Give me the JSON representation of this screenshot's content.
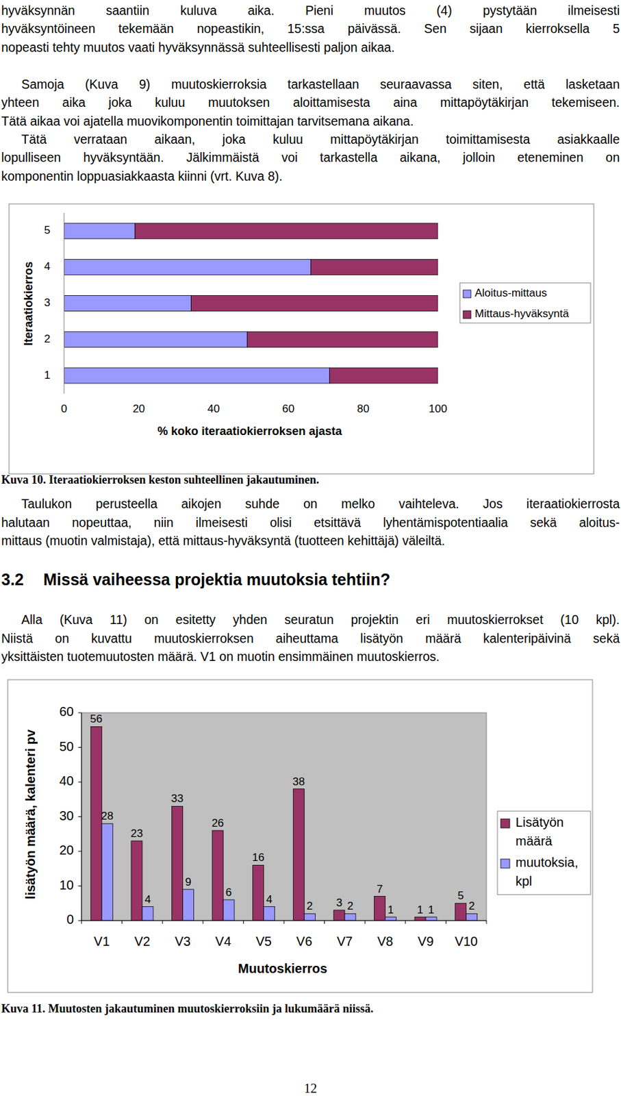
{
  "body_top": [
    [
      "hyväksynnän saantiin kuluva aika. Pieni muutos (4) pystytään ilmeisesti",
      "hyväksyntöineen tekemään nopeastikin, 15:ssa päivässä. Sen sijaan kierroksella 5",
      "nopeasti tehty muutos vaati hyväksynnässä suhteellisesti paljon aikaa."
    ],
    [
      "Samoja (Kuva 9) muutoskierroksia tarkastellaan seuraavassa siten, että lasketaan",
      "yhteen aika joka kuluu muutoksen aloittamisesta aina mittapöytäkirjan tekemiseen.",
      "Tätä aikaa voi ajatella muovikomponentin toimittajan tarvitsemana aikana."
    ],
    [
      "Tätä verrataan aikaan, joka kuluu mittapöytäkirjan toimittamisesta asiakkaalle",
      "lopulliseen hyväksyntään. Jälkimmäistä voi tarkastella aikana, jolloin eteneminen on",
      "komponentin loppuasiakkaasta kiinni (vrt. Kuva 8)."
    ]
  ],
  "chart_data": [
    {
      "type": "bar",
      "orientation": "horizontal",
      "stacked": true,
      "categories": [
        "1",
        "2",
        "3",
        "4",
        "5"
      ],
      "series": [
        {
          "name": "Aloitus-mittaus",
          "color": "#9999ff",
          "values": [
            71,
            49,
            34,
            66,
            19
          ]
        },
        {
          "name": "Mittaus-hyväksyntä",
          "color": "#993366",
          "values": [
            29,
            51,
            66,
            34,
            81
          ]
        }
      ],
      "xlim": [
        0,
        100
      ],
      "xticks": [
        0,
        20,
        40,
        60,
        80,
        100
      ],
      "x_label": "% koko iteraatiokierroksen ajasta",
      "y_label": "Iteraatiokierros",
      "grid": false,
      "legend": "right"
    },
    {
      "type": "bar",
      "categories": [
        "V1",
        "V2",
        "V3",
        "V4",
        "V5",
        "V6",
        "V7",
        "V8",
        "V9",
        "V10"
      ],
      "series": [
        {
          "name": "Lisätyön määrä",
          "color": "#993366",
          "values": [
            56,
            23,
            33,
            26,
            16,
            38,
            3,
            7,
            1,
            5
          ]
        },
        {
          "name": "muutoksia, kpl",
          "color": "#9999ff",
          "values": [
            28,
            4,
            9,
            6,
            4,
            2,
            2,
            1,
            1,
            2
          ]
        }
      ],
      "ylim": [
        0,
        60
      ],
      "yticks": [
        0,
        10,
        20,
        30,
        40,
        50,
        60
      ],
      "x_label": "Muutoskierros",
      "y_label": "lisätyön määrä, kalenteri pv",
      "data_labels": true,
      "grid": false,
      "legend": "right"
    }
  ],
  "caption_10": "Kuva 10. Iteraatiokierroksen keston suhteellinen jakautuminen.",
  "body_middle": [
    [
      "Taulukon perusteella aikojen suhde on melko vaihteleva. Jos iteraatiokierrosta",
      "halutaan nopeuttaa, niin ilmeisesti olisi etsittävä lyhentämispotentiaalia sekä aloitus-",
      "mittaus (muotin valmistaja), että mittaus-hyväksyntä (tuotteen kehittäjä) väleiltä."
    ]
  ],
  "heading": {
    "number": "3.2",
    "title": "Missä vaiheessa projektia muutoksia tehtiin?"
  },
  "body_bottom": [
    [
      "Alla (Kuva 11) on esitetty yhden seuratun projektin eri muutoskierrokset (10 kpl).",
      "Niistä on kuvattu muutoskierroksen aiheuttama lisätyön määrä kalenteripäivinä sekä",
      "yksittäisten tuotemuutosten määrä. V1 on muotin ensimmäinen muutoskierros."
    ]
  ],
  "caption_11": "Kuva 11. Muutosten jakautuminen muutoskierroksiin ja lukumäärä niissä.",
  "page_number": "12"
}
